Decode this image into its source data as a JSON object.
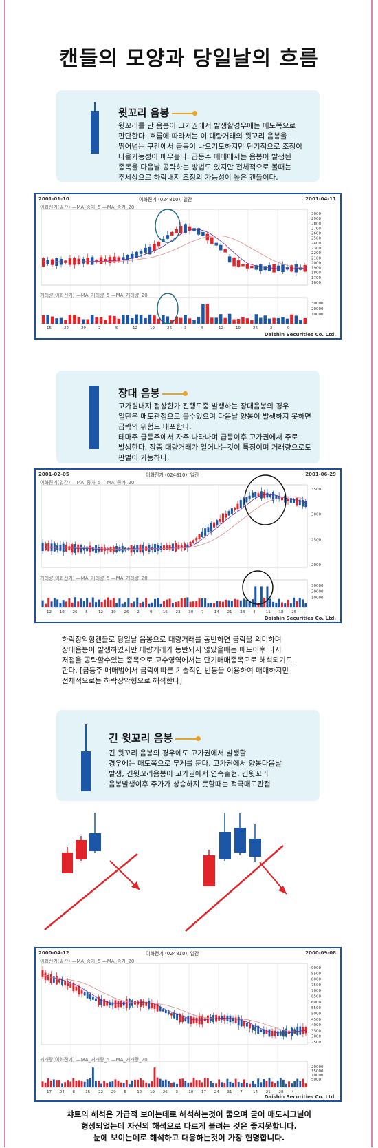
{
  "page": {
    "title": "캔들의 모양과 당일날의 흐름"
  },
  "section1": {
    "heading": "윗꼬리 음봉",
    "body": [
      "윗꼬리를 단 음봉이 고가권에서 발생할경우에는 매도쪽으로",
      "판단한다. 흐름에 따라서는 이 대량거래의 윗꼬리 음봉을",
      "뛰어넘는 구간에서 급등이 나오기도하지만 단기적으로 조정이",
      "나올가능성이 매우높다. 급등주 매매에서는 음봉이 발생된",
      "종목을 다음날 공략하는 방법도 있지만 전체적으로 볼때는",
      "추세상으로 하락내지 조정의 가능성이 높은 캔들이다."
    ]
  },
  "chart1": {
    "date_start": "2001-01-10",
    "chart_name": "이화전기 (024810), 일간",
    "date_end": "2001-04-11",
    "legend_price": "이화전기(일간) —MA_종가_5 —MA_종가_20",
    "legend_volume": "거래량(이화전기) —MA_거래량_5 —MA_거래량_20",
    "price_ticks": [
      "3000",
      "2900",
      "2800",
      "2700",
      "2600",
      "2500",
      "2400",
      "2300",
      "2200",
      "2100",
      "2000",
      "1900",
      "1800",
      "1700",
      "1600"
    ],
    "volume_ticks": [
      "30000",
      "20000",
      "10000"
    ],
    "date_ticks": [
      "15",
      "22",
      "29",
      "2",
      "5",
      "12",
      "19",
      "26",
      "3",
      "5",
      "12",
      "19",
      "26",
      "2",
      "9"
    ],
    "footer": "Daishin Securities Co. Ltd."
  },
  "section2": {
    "heading": "장대 음봉",
    "body": [
      "고가원내지 점상한가 진행도중 발생하는 장대음봉의 경우",
      "일단은 매도관점으로 볼수있으며 다음날 양봉이 발생하지 못하면",
      "급락의 위험도 내포한다.",
      "테마주 급등주에서 자주 나타나며 급등이후 고가권에서 주로",
      "발생한다. 장중 대량거래가 일어나는것이 특징이며 거래량으로도",
      "판별이 가능하다."
    ]
  },
  "chart2": {
    "date_start": "2001-02-05",
    "chart_name": "이화전기 (024810), 일간",
    "date_end": "2001-06-29",
    "legend_price": "이화전기(일간) —MA_종가_5 —MA_종가_20",
    "legend_volume": "거래량(이화전기) —MA_거래량_5 —MA_거래량_20",
    "price_ticks": [
      "3500",
      "3000",
      "2500",
      "2000"
    ],
    "volume_ticks": [
      "30000",
      "20000",
      "10000"
    ],
    "date_ticks": [
      "12",
      "19",
      "26",
      "5",
      "12",
      "19",
      "26",
      "2",
      "9",
      "16",
      "23",
      "30",
      "7",
      "14",
      "21",
      "28",
      "4",
      "11",
      "18",
      "25"
    ],
    "footer": "Daishin Securities Co. Ltd."
  },
  "para1": [
    "하락장악형캔들로 당일날 음봉으로 대량거래를 동반하면 급락을 의미하며",
    "장대음봉이 발생하였지만 대량거래가 동반되지 않았을때는 매도이후 다시",
    "저점을 공략할수있는 종목으로 고수영역에서는 단기매매종목으로 해석되기도",
    "한다. [급등주 매매법에서 급락에따른 기술적인 반등을 이용하여 매매하지만",
    "전체적으로는 하락장악형으로 해석한다]"
  ],
  "section3": {
    "heading": "긴 윗꼬리 음봉",
    "body": [
      "긴 윗꼬리 음봉의 경우에도 고가권에서 발생할",
      "경우에는 매도쪽으로 무게를 둔다. 고가권에서 양봉다음날",
      "발생, 긴윗꼬리음봉이 고가권에서 연속출현, 긴윗꼬리",
      "음봉발생이후 주가가 상승하지 못할때는 적극매도관점"
    ]
  },
  "chart3": {
    "date_start": "2000-04-12",
    "chart_name": "이화전기 (024810), 일간",
    "date_end": "2000-09-08",
    "legend_price": "이화전기(일간) —MA_종가_5 —MA_종가_20",
    "legend_volume": "거래량(이화전기) —MA_거래량_5 —MA_거래량_20",
    "price_ticks": [
      "9000",
      "8500",
      "8000",
      "7500",
      "7000",
      "6500",
      "6000",
      "5500",
      "5000",
      "4500",
      "4000",
      "3500",
      "3000",
      "2500"
    ],
    "volume_ticks": [
      "20000",
      "15000",
      "10000",
      "5000"
    ],
    "date_ticks": [
      "17",
      "24",
      "8",
      "15",
      "22",
      "29",
      "5",
      "12",
      "19",
      "26",
      "3",
      "10",
      "17",
      "24",
      "31",
      "7",
      "14",
      "21",
      "28",
      "4"
    ],
    "footer": "Daishin Securities Co. Ltd."
  },
  "final": [
    "챠트의 해석은 가급적 보이는데로 해석하는것이 좋으며 굳이 매도시그널이",
    "형성되었는데 자신의 해석으로 다르게 볼려는 것은 좋지못합니다.",
    "눈에 보이는데로 해석하고 대응하는것이 가장 현명합니다."
  ],
  "colors": {
    "up": "#e0242a",
    "down": "#1b57a6",
    "accent": "#e8a227",
    "chart_border": "#1e4fa0",
    "box_bg": "#e3f3f7"
  }
}
